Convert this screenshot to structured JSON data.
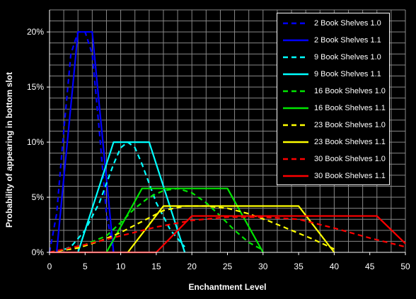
{
  "chart_data": {
    "type": "line",
    "xlabel": "Enchantment Level",
    "ylabel": "Probability of appearing in bottom slot",
    "xlim": [
      0,
      50
    ],
    "ylim": [
      0,
      22
    ],
    "xticks": [
      "0",
      "5",
      "10",
      "15",
      "20",
      "25",
      "30",
      "35",
      "40",
      "45",
      "50"
    ],
    "yticks": [
      "0%",
      "5%",
      "10%",
      "15%",
      "20%"
    ],
    "grid": true,
    "legend_position": "top-right",
    "background": "#000000",
    "series": [
      {
        "name": "2 Book Shelves 1.0",
        "color": "#0000ff",
        "dash": true,
        "x": [
          0,
          1,
          2,
          3,
          4,
          5,
          6,
          7,
          8,
          9
        ],
        "y": [
          0,
          3.5,
          11,
          18,
          20,
          20,
          18,
          11,
          3.5,
          0
        ]
      },
      {
        "name": "2 Book Shelves 1.1",
        "color": "#0000ff",
        "dash": false,
        "x": [
          1,
          2,
          3,
          4,
          5,
          6,
          7,
          8,
          9
        ],
        "y": [
          0,
          6.7,
          13.3,
          20,
          20,
          20,
          13.3,
          6.7,
          0
        ]
      },
      {
        "name": "9 Book Shelves 1.0",
        "color": "#00ffff",
        "dash": true,
        "x": [
          1,
          3,
          5,
          7,
          9,
          10,
          11,
          12,
          13,
          15,
          17,
          19
        ],
        "y": [
          0,
          0.5,
          2,
          4.5,
          8,
          9.5,
          10,
          9.5,
          8,
          4.5,
          2,
          0.5
        ]
      },
      {
        "name": "9 Book Shelves 1.1",
        "color": "#00ffff",
        "dash": false,
        "x": [
          4,
          9,
          14,
          19
        ],
        "y": [
          0,
          10,
          10,
          0
        ]
      },
      {
        "name": "16 Book Shelves 1.0",
        "color": "#00e600",
        "dash": true,
        "x": [
          0,
          3,
          5,
          8,
          10,
          12,
          14,
          16,
          18,
          20,
          22,
          24,
          26,
          28,
          30
        ],
        "y": [
          0,
          0.3,
          0.7,
          1.5,
          2.7,
          4,
          5,
          5.6,
          5.8,
          5.4,
          4.5,
          3.3,
          2,
          0.9,
          0.2
        ]
      },
      {
        "name": "16 Book Shelves 1.1",
        "color": "#00e600",
        "dash": false,
        "x": [
          8,
          13,
          25,
          30
        ],
        "y": [
          0,
          5.8,
          5.8,
          0
        ]
      },
      {
        "name": "23 Book Shelves 1.0",
        "color": "#ffff00",
        "dash": true,
        "x": [
          0,
          4,
          7,
          10,
          13,
          16,
          19,
          22,
          25,
          28,
          31,
          34,
          37,
          40
        ],
        "y": [
          0,
          0.4,
          1,
          1.8,
          2.8,
          3.8,
          4.2,
          4.2,
          4,
          3.5,
          2.8,
          2,
          1.2,
          0.3
        ]
      },
      {
        "name": "23 Book Shelves 1.1",
        "color": "#ffff00",
        "dash": false,
        "x": [
          11,
          16,
          35,
          40
        ],
        "y": [
          0,
          4.2,
          4.2,
          0
        ]
      },
      {
        "name": "30 Book Shelves 1.0",
        "color": "#ff0000",
        "dash": true,
        "x": [
          0,
          5,
          10,
          15,
          20,
          25,
          30,
          35,
          40,
          45,
          50
        ],
        "y": [
          0,
          0.7,
          1.5,
          2.3,
          2.9,
          3.2,
          3.2,
          3,
          2.2,
          1.3,
          0.5
        ]
      },
      {
        "name": "30 Book Shelves 1.1",
        "color": "#ff0000",
        "dash": false,
        "x": [
          0,
          15,
          20,
          46,
          50
        ],
        "y": [
          0,
          0,
          3.3,
          3.3,
          0.8
        ]
      }
    ]
  }
}
